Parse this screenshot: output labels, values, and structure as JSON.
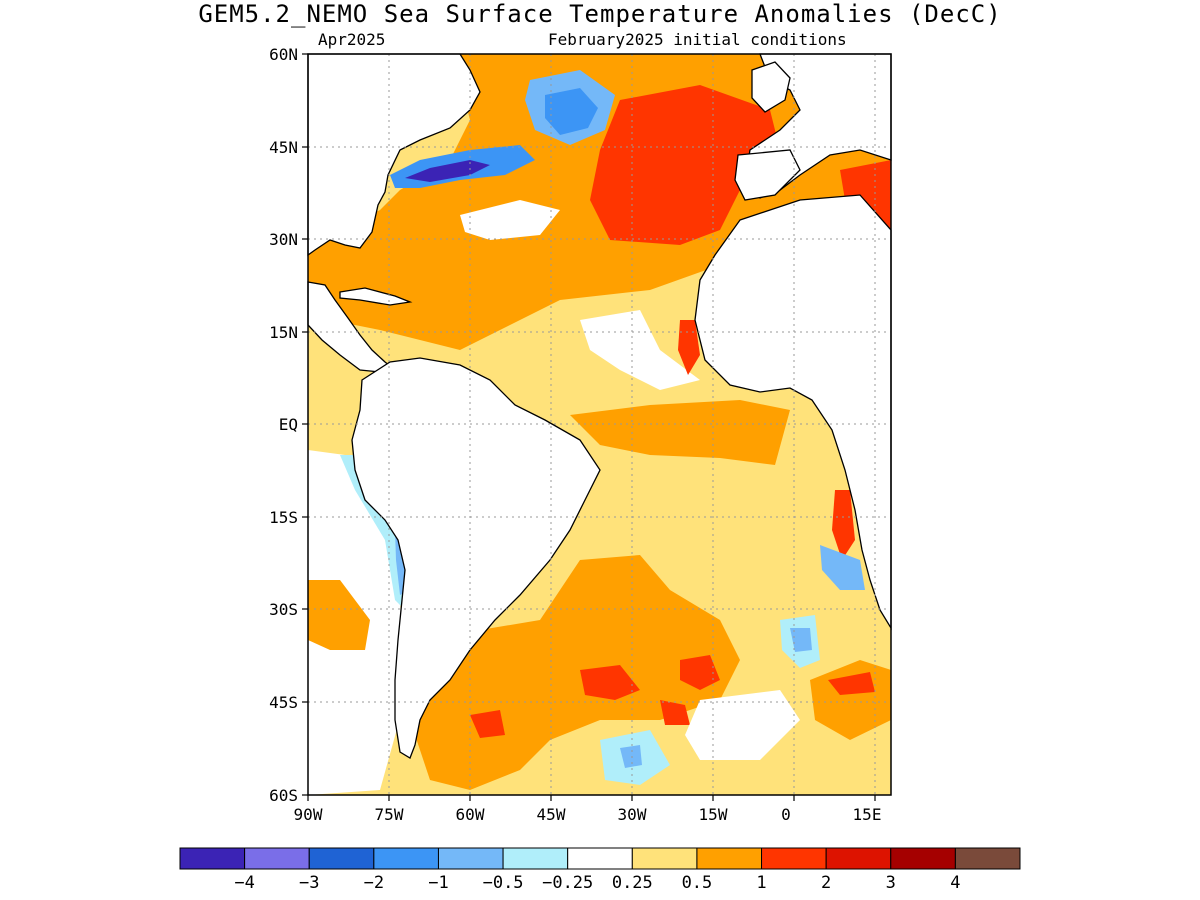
{
  "title": "GEM5.2_NEMO Sea Surface Temperature Anomalies (DecC)",
  "valid_month": "Apr2025",
  "init_conditions": "February2025 initial conditions",
  "map": {
    "lat_labels": [
      "60N",
      "45N",
      "30N",
      "15N",
      "EQ",
      "15S",
      "30S",
      "45S",
      "60S"
    ],
    "lon_labels": [
      "90W",
      "75W",
      "60W",
      "45W",
      "30W",
      "15W",
      "0",
      "15E"
    ]
  },
  "colorbar": {
    "colors": [
      "#3b23b5",
      "#7a6ee8",
      "#1f63d4",
      "#3c95f5",
      "#74b8f8",
      "#b0eefa",
      "#ffffff",
      "#ffe27a",
      "#ffa000",
      "#ff3500",
      "#dd1300",
      "#a50000",
      "#7a4a3a"
    ],
    "labels": [
      "-4",
      "-3",
      "-2",
      "-1",
      "-0.5",
      "-0.25",
      "0.25",
      "0.5",
      "1",
      "2",
      "3",
      "4"
    ]
  },
  "chart_data": {
    "type": "heatmap",
    "title": "GEM5.2_NEMO Sea Surface Temperature Anomalies (DecC)",
    "subtitle": "Apr2025 February2025 initial conditions",
    "x_ticks": [
      "90W",
      "75W",
      "60W",
      "45W",
      "30W",
      "15W",
      "0",
      "15E"
    ],
    "y_ticks": [
      "60N",
      "45N",
      "30N",
      "15N",
      "EQ",
      "15S",
      "30S",
      "45S",
      "60S"
    ],
    "xlim": [
      -90,
      18
    ],
    "ylim": [
      -60,
      60
    ],
    "levels": [
      -4,
      -3,
      -2,
      -1,
      -0.5,
      -0.25,
      0.25,
      0.5,
      1,
      2,
      3,
      4
    ],
    "grid": true
  }
}
